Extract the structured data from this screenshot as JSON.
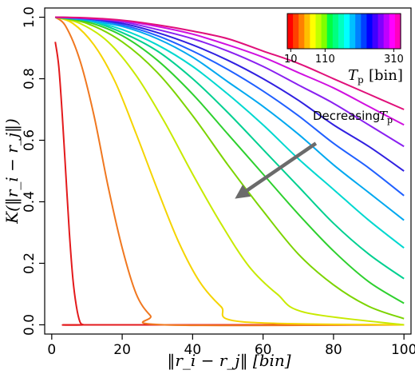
{
  "chart_data": {
    "type": "line",
    "title": "",
    "xlabel": "‖r_i − r_j‖ [bin]",
    "ylabel": "K(‖r_i − r_j‖)",
    "xlim": [
      -2,
      102
    ],
    "ylim": [
      -0.03,
      1.03
    ],
    "xticks": [
      0,
      20,
      40,
      60,
      80,
      100
    ],
    "xtick_labels": [
      "0",
      "20",
      "40",
      "60",
      "80",
      "100"
    ],
    "yticks": [
      0.0,
      0.2,
      0.4,
      0.6,
      0.8,
      1.0
    ],
    "ytick_labels": [
      "0.0",
      "0.2",
      "0.4",
      "0.6",
      "0.8",
      "1.0"
    ],
    "grid": false,
    "annotation": {
      "text": "Decreasing",
      "math": "T",
      "math_sub": "p",
      "arrow_from": [
        75,
        0.59
      ],
      "arrow_to": [
        52,
        0.41
      ]
    },
    "colorbar": {
      "placement": "top-right",
      "tick_labels": [
        "10",
        "110",
        "310"
      ],
      "tick_values": [
        10,
        110,
        310
      ],
      "range": [
        0,
        330
      ],
      "title": "T",
      "title_sub": "p",
      "title_unit": "[bin]",
      "colors": [
        "#ff0000",
        "#ff4000",
        "#ff8000",
        "#ffbf00",
        "#ffff00",
        "#bfff00",
        "#80ff00",
        "#00ff40",
        "#00ff80",
        "#00ffbf",
        "#00ffff",
        "#00bfff",
        "#0080ff",
        "#0040ff",
        "#0000ff",
        "#4000ff",
        "#8000ff",
        "#bf00ff",
        "#ff00ff",
        "#ff00bf"
      ]
    },
    "series": [
      {
        "color": "#e31a1c",
        "x": [
          1,
          2,
          3,
          4,
          5,
          6,
          7,
          8,
          9,
          10,
          100
        ],
        "y": [
          0.92,
          0.84,
          0.68,
          0.49,
          0.3,
          0.15,
          0.06,
          0.01,
          0.0,
          0.0,
          0.0
        ]
      },
      {
        "color": "#f07820",
        "x": [
          1,
          4,
          8,
          12,
          16,
          20,
          24,
          28,
          32,
          100
        ],
        "y": [
          1.0,
          0.97,
          0.86,
          0.68,
          0.45,
          0.25,
          0.1,
          0.03,
          0.0,
          0.0
        ]
      },
      {
        "color": "#f5d400",
        "x": [
          1,
          6,
          12,
          18,
          24,
          30,
          36,
          42,
          48,
          54,
          100
        ],
        "y": [
          1.0,
          0.98,
          0.91,
          0.79,
          0.62,
          0.44,
          0.27,
          0.14,
          0.06,
          0.01,
          0.0
        ]
      },
      {
        "color": "#c8ea00",
        "x": [
          1,
          8,
          16,
          24,
          32,
          40,
          48,
          56,
          64,
          72,
          100
        ],
        "y": [
          1.0,
          0.98,
          0.92,
          0.81,
          0.66,
          0.49,
          0.33,
          0.19,
          0.1,
          0.04,
          0.0
        ]
      },
      {
        "color": "#7cd400",
        "x": [
          1,
          10,
          20,
          30,
          40,
          50,
          60,
          70,
          80,
          90,
          100
        ],
        "y": [
          1.0,
          0.98,
          0.92,
          0.82,
          0.68,
          0.52,
          0.37,
          0.23,
          0.13,
          0.06,
          0.02
        ]
      },
      {
        "color": "#2ed02e",
        "x": [
          1,
          10,
          20,
          30,
          40,
          50,
          60,
          70,
          80,
          90,
          100
        ],
        "y": [
          1.0,
          0.985,
          0.94,
          0.86,
          0.75,
          0.62,
          0.49,
          0.36,
          0.24,
          0.14,
          0.07
        ]
      },
      {
        "color": "#00d090",
        "x": [
          1,
          10,
          20,
          30,
          40,
          50,
          60,
          70,
          80,
          90,
          100
        ],
        "y": [
          1.0,
          0.99,
          0.95,
          0.89,
          0.8,
          0.69,
          0.57,
          0.45,
          0.33,
          0.23,
          0.15
        ]
      },
      {
        "color": "#00d8d0",
        "x": [
          1,
          10,
          20,
          30,
          40,
          50,
          60,
          70,
          80,
          90,
          100
        ],
        "y": [
          1.0,
          0.99,
          0.96,
          0.91,
          0.84,
          0.75,
          0.65,
          0.54,
          0.44,
          0.34,
          0.25
        ]
      },
      {
        "color": "#00a8f0",
        "x": [
          1,
          10,
          20,
          30,
          40,
          50,
          60,
          70,
          80,
          90,
          100
        ],
        "y": [
          1.0,
          0.99,
          0.97,
          0.93,
          0.87,
          0.79,
          0.71,
          0.62,
          0.52,
          0.43,
          0.34
        ]
      },
      {
        "color": "#2060ff",
        "x": [
          1,
          10,
          20,
          30,
          40,
          50,
          60,
          70,
          80,
          90,
          100
        ],
        "y": [
          1.0,
          0.995,
          0.975,
          0.94,
          0.89,
          0.83,
          0.76,
          0.68,
          0.59,
          0.51,
          0.42
        ]
      },
      {
        "color": "#3020e0",
        "x": [
          1,
          10,
          20,
          30,
          40,
          50,
          60,
          70,
          80,
          90,
          100
        ],
        "y": [
          1.0,
          0.995,
          0.98,
          0.95,
          0.91,
          0.86,
          0.8,
          0.73,
          0.65,
          0.58,
          0.5
        ]
      },
      {
        "color": "#8a20f0",
        "x": [
          1,
          10,
          20,
          30,
          40,
          50,
          60,
          70,
          80,
          90,
          100
        ],
        "y": [
          1.0,
          0.996,
          0.985,
          0.96,
          0.93,
          0.89,
          0.84,
          0.78,
          0.72,
          0.65,
          0.58
        ]
      },
      {
        "color": "#d010e0",
        "x": [
          1,
          10,
          20,
          30,
          40,
          50,
          60,
          70,
          80,
          90,
          100
        ],
        "y": [
          1.0,
          0.997,
          0.988,
          0.97,
          0.945,
          0.91,
          0.87,
          0.82,
          0.77,
          0.71,
          0.65
        ]
      },
      {
        "color": "#e0107a",
        "x": [
          1,
          10,
          20,
          30,
          40,
          50,
          60,
          70,
          80,
          90,
          100
        ],
        "y": [
          1.0,
          0.998,
          0.99,
          0.975,
          0.955,
          0.93,
          0.89,
          0.85,
          0.8,
          0.75,
          0.7
        ]
      }
    ]
  }
}
